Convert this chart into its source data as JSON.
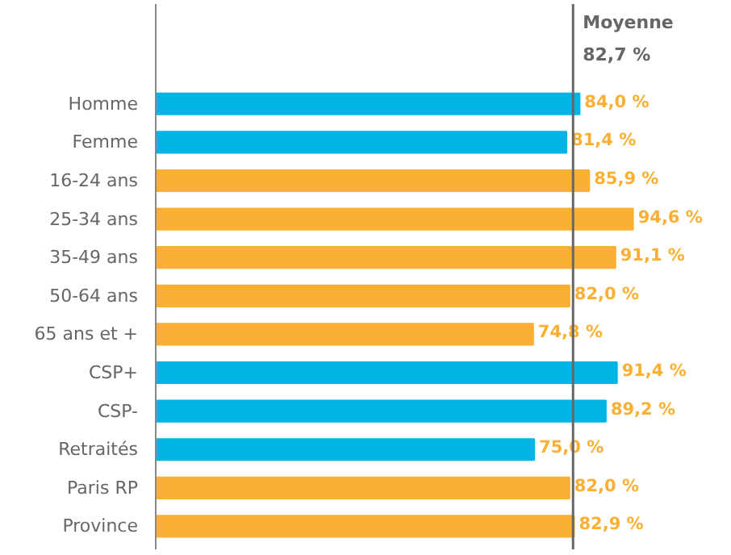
{
  "chart_data": {
    "type": "bar",
    "orientation": "horizontal",
    "categories": [
      "Homme",
      "Femme",
      "16-24 ans",
      "25-34 ans",
      "35-49 ans",
      "50-64 ans",
      "65 ans et +",
      "CSP+",
      "CSP-",
      "Retraités",
      "Paris RP",
      "Province"
    ],
    "values": [
      84.0,
      81.4,
      85.9,
      94.6,
      91.1,
      82.0,
      74.8,
      91.4,
      89.2,
      75.0,
      82.0,
      82.9
    ],
    "colors": [
      "#00b4e6",
      "#00b4e6",
      "#fbb034",
      "#fbb034",
      "#fbb034",
      "#fbb034",
      "#fbb034",
      "#00b4e6",
      "#00b4e6",
      "#00b4e6",
      "#fbb034",
      "#fbb034"
    ],
    "value_labels": [
      "84,0 %",
      "81,4 %",
      "85,9 %",
      "94,6 %",
      "91,1 %",
      "82,0 %",
      "74,8 %",
      "91,4 %",
      "89,2 %",
      "75,0 %",
      "82,0 %",
      "82,9 %"
    ],
    "ref_lines": [
      {
        "axis": "x",
        "value": 82.7,
        "label": "Moyenne\n82,7 %",
        "color": "#666666"
      }
    ],
    "grid": false
  }
}
